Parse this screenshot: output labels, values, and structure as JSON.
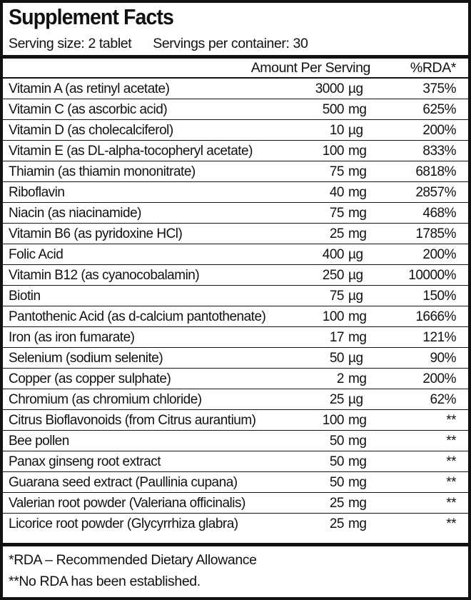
{
  "title": "Supplement Facts",
  "serving_size": "Serving size: 2 tablet",
  "servings_per_container": "Servings per container: 30",
  "header": {
    "amount": "Amount Per Serving",
    "rda": "%RDA*"
  },
  "rows": [
    {
      "name": "Vitamin A (as retinyl acetate)",
      "value": "3000",
      "unit": "µg",
      "rda": "375%"
    },
    {
      "name": "Vitamin C (as ascorbic acid)",
      "value": "500",
      "unit": "mg",
      "rda": "625%"
    },
    {
      "name": "Vitamin D (as cholecalciferol)",
      "value": "10",
      "unit": "µg",
      "rda": "200%"
    },
    {
      "name": "Vitamin E (as DL-alpha-tocopheryl acetate)",
      "value": "100",
      "unit": "mg",
      "rda": "833%"
    },
    {
      "name": "Thiamin (as thiamin mononitrate)",
      "value": "75",
      "unit": "mg",
      "rda": "6818%"
    },
    {
      "name": "Riboflavin",
      "value": "40",
      "unit": "mg",
      "rda": "2857%"
    },
    {
      "name": "Niacin (as niacinamide)",
      "value": "75",
      "unit": "mg",
      "rda": "468%"
    },
    {
      "name": "Vitamin B6 (as pyridoxine HCl)",
      "value": "25",
      "unit": "mg",
      "rda": "1785%"
    },
    {
      "name": "Folic Acid",
      "value": "400",
      "unit": "µg",
      "rda": "200%"
    },
    {
      "name": "Vitamin B12 (as cyanocobalamin)",
      "value": "250",
      "unit": "µg",
      "rda": "10000%"
    },
    {
      "name": "Biotin",
      "value": "75",
      "unit": "µg",
      "rda": "150%"
    },
    {
      "name": "Pantothenic Acid (as d-calcium pantothenate)",
      "value": "100",
      "unit": "mg",
      "rda": "1666%"
    },
    {
      "name": "Iron (as iron fumarate)",
      "value": "17",
      "unit": "mg",
      "rda": "121%"
    },
    {
      "name": "Selenium (sodium selenite)",
      "value": "50",
      "unit": "µg",
      "rda": "90%"
    },
    {
      "name": "Copper (as copper sulphate)",
      "value": "2",
      "unit": "mg",
      "rda": "200%"
    },
    {
      "name": "Chromium (as chromium chloride)",
      "value": "25",
      "unit": "µg",
      "rda": "62%"
    },
    {
      "name": "Citrus Bioflavonoids (from Citrus aurantium)",
      "value": "100",
      "unit": "mg",
      "rda": "**"
    },
    {
      "name": "Bee pollen",
      "value": "50",
      "unit": "mg",
      "rda": "**"
    },
    {
      "name": "Panax ginseng root extract",
      "value": "50",
      "unit": "mg",
      "rda": "**"
    },
    {
      "name": "Guarana seed extract (Paullinia cupana)",
      "value": "50",
      "unit": "mg",
      "rda": "**"
    },
    {
      "name": "Valerian root powder (Valeriana officinalis)",
      "value": "25",
      "unit": "mg",
      "rda": "**"
    },
    {
      "name": "Licorice root powder (Glycyrrhiza glabra)",
      "value": "25",
      "unit": "mg",
      "rda": "**"
    }
  ],
  "footnotes": [
    "*RDA – Recommended Dietary Allowance",
    "**No RDA has been established."
  ]
}
